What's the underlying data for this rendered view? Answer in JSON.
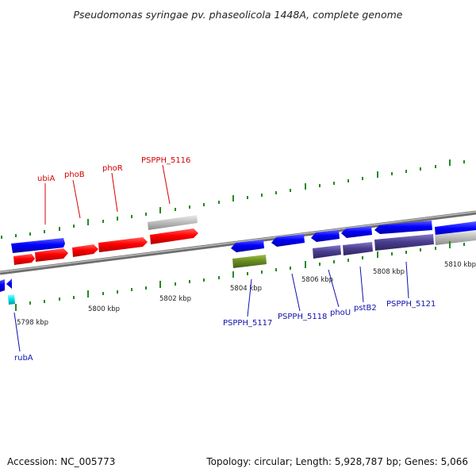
{
  "header": {
    "title": "Pseudomonas syringae pv. phaseolicola 1448A, complete genome"
  },
  "footer": {
    "accession": "Accession: NC_005773",
    "summary": "Topology: circular; Length: 5,928,787 bp; Genes: 5,066"
  },
  "scale": {
    "ticks": [
      {
        "label": "5798 kbp"
      },
      {
        "label": "5800 kbp"
      },
      {
        "label": "5802 kbp"
      },
      {
        "label": "5804 kbp"
      },
      {
        "label": "5806 kbp"
      },
      {
        "label": "5808 kbp"
      },
      {
        "label": "5810 kbp"
      }
    ]
  },
  "genes": {
    "ubiA": "ubiA",
    "phoB": "phoB",
    "phoR": "phoR",
    "pspph5116": "PSPPH_5116",
    "pspph5117": "PSPPH_5117",
    "pspph5118": "PSPPH_5118",
    "phoU": "phoU",
    "pstB2": "pstB2",
    "pspph5121": "PSPPH_5121",
    "rubA": "rubA"
  },
  "colors": {
    "cds_red": "#ff0000",
    "cds_blue": "#0000ff",
    "purple": "#4b3f8f",
    "olive": "#6b8e23",
    "gray_feature": "#c0c0c0",
    "cyan": "#00e5ee",
    "backbone": "#8a8a8a",
    "tick_green": "#228b22"
  }
}
